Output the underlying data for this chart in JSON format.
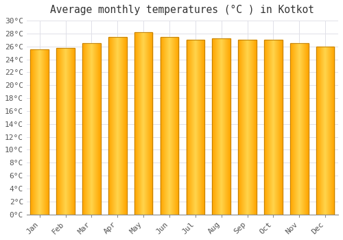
{
  "title": "Average monthly temperatures (°C ) in Kotkot",
  "months": [
    "Jan",
    "Feb",
    "Mar",
    "Apr",
    "May",
    "Jun",
    "Jul",
    "Aug",
    "Sep",
    "Oct",
    "Nov",
    "Dec"
  ],
  "values": [
    25.6,
    25.8,
    26.5,
    27.5,
    28.2,
    27.5,
    27.0,
    27.2,
    27.0,
    27.0,
    26.5,
    26.0
  ],
  "bar_color_main": "#FFA500",
  "bar_color_center": "#FFD44C",
  "bar_color_edge": "#E08A00",
  "bar_outline": "#B87800",
  "background_color": "#FFFFFF",
  "grid_color": "#E0E0E8",
  "ylim": [
    0,
    30
  ],
  "ytick_step": 2,
  "title_fontsize": 10.5,
  "tick_fontsize": 8
}
